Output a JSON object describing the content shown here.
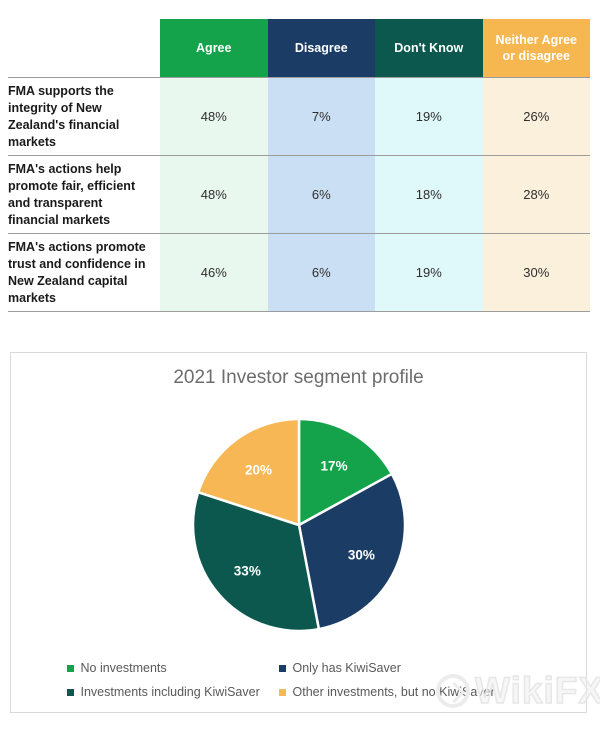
{
  "table": {
    "columns": [
      {
        "label": "Agree",
        "header_bg": "#14A24B",
        "cell_bg": "#E9F8EF"
      },
      {
        "label": "Disagree",
        "header_bg": "#1B3D65",
        "cell_bg": "#CBDFF4"
      },
      {
        "label": "Don't Know",
        "header_bg": "#0D584E",
        "cell_bg": "#DFF8F9"
      },
      {
        "label": "Neither Agree or disagree",
        "header_bg": "#F6B751",
        "cell_bg": "#FBF0DC"
      }
    ],
    "rows": [
      {
        "label": "FMA supports the integrity of New Zealand's financial markets",
        "values": [
          "48%",
          "7%",
          "19%",
          "26%"
        ]
      },
      {
        "label": "FMA's actions help promote fair, efficient and transparent financial markets",
        "values": [
          "48%",
          "6%",
          "18%",
          "28%"
        ]
      },
      {
        "label": "FMA's actions promote trust and confidence in New Zealand capital markets",
        "values": [
          "46%",
          "6%",
          "19%",
          "30%"
        ]
      }
    ]
  },
  "chart_data": {
    "type": "pie",
    "title": "2021 Investor segment profile",
    "categories": [
      "No investments",
      "Only has KiwiSaver",
      "Investments including KiwiSaver",
      "Other investments, but no KiwiSaver"
    ],
    "values": [
      17,
      30,
      33,
      20
    ],
    "value_labels": [
      "17%",
      "30%",
      "33%",
      "20%"
    ],
    "colors": [
      "#14A24B",
      "#1B3D65",
      "#0D584E",
      "#F7B754"
    ],
    "start_angle_deg": 0,
    "direction": "clockwise",
    "legend_position": "bottom",
    "label_radius_fraction": 0.65
  },
  "watermark": {
    "text": "WikiFX"
  }
}
